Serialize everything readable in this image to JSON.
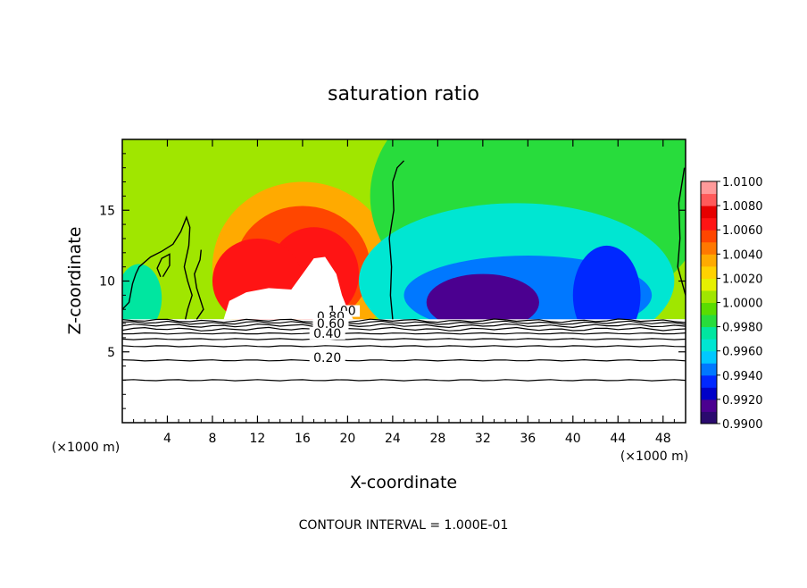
{
  "chart_data": {
    "type": "heatmap",
    "title": "saturation ratio",
    "xlabel": "X-coordinate",
    "ylabel": "Z-coordinate",
    "x_unit_left": "(×1000 m)",
    "x_unit_right": "(×1000 m)",
    "footer": "CONTOUR INTERVAL = 1.000E-01",
    "xlim": [
      0,
      50
    ],
    "ylim": [
      0,
      20
    ],
    "x_ticks": [
      4,
      8,
      12,
      16,
      20,
      24,
      28,
      32,
      36,
      40,
      44,
      48
    ],
    "y_ticks": [
      5,
      10,
      15
    ],
    "colorbar": {
      "range": [
        0.99,
        1.01
      ],
      "labels": [
        "1.0100",
        "1.0080",
        "1.0060",
        "1.0040",
        "1.0020",
        "1.0000",
        "0.9980",
        "0.9960",
        "0.9940",
        "0.9920",
        "0.9900"
      ],
      "colors": [
        "#2a0a6e",
        "#4b0090",
        "#0000c8",
        "#0028ff",
        "#0078ff",
        "#00c8ff",
        "#00e6d2",
        "#00e6a0",
        "#28dc3c",
        "#5adc00",
        "#a0e600",
        "#e6f000",
        "#ffd200",
        "#ffaa00",
        "#ff7800",
        "#ff4600",
        "#ff1414",
        "#e60000",
        "#ff5a5a",
        "#ff9a9a"
      ]
    },
    "contour_labels": [
      "1.00",
      "0.80",
      "0.60",
      "0.40",
      "0.20"
    ],
    "surface_z": 7.3,
    "contour_levels_z": [
      3.0,
      4.4,
      5.4,
      5.9,
      6.3,
      6.6,
      6.85,
      7.05,
      7.2
    ],
    "blobs": [
      {
        "x": 4,
        "z": 17.5,
        "rx": 12,
        "rz": 6,
        "value": 1.0002
      },
      {
        "x": 13,
        "z": 16,
        "rx": 9,
        "rz": 7,
        "value": 1.0008
      },
      {
        "x": 16,
        "z": 11,
        "rx": 8,
        "rz": 6,
        "value": 1.0034
      },
      {
        "x": 16,
        "z": 11,
        "rx": 6,
        "rz": 4.3,
        "value": 1.0054
      },
      {
        "x": 17,
        "z": 10.5,
        "rx": 4,
        "rz": 3.3,
        "value": 1.0066
      },
      {
        "x": 12,
        "z": 10,
        "rx": 4,
        "rz": 3,
        "value": 1.006
      },
      {
        "x": 37,
        "z": 16,
        "rx": 15,
        "rz": 9,
        "value": 0.9986
      },
      {
        "x": 35,
        "z": 10,
        "rx": 14,
        "rz": 5.5,
        "value": 0.9968
      },
      {
        "x": 36,
        "z": 9,
        "rx": 11,
        "rz": 2.8,
        "value": 0.9946
      },
      {
        "x": 32,
        "z": 8.5,
        "rx": 5,
        "rz": 2,
        "value": 0.9918
      },
      {
        "x": 43,
        "z": 9,
        "rx": 3,
        "rz": 3.5,
        "value": 0.9935
      },
      {
        "x": 1.5,
        "z": 8.8,
        "rx": 2,
        "rz": 2.4,
        "value": 0.9972
      }
    ],
    "white_region": [
      [
        9,
        7.3
      ],
      [
        9.5,
        8.6
      ],
      [
        11,
        9.2
      ],
      [
        13,
        9.5
      ],
      [
        15,
        9.4
      ],
      [
        16,
        10.5
      ],
      [
        17,
        11.6
      ],
      [
        18,
        11.7
      ],
      [
        19,
        10.5
      ],
      [
        19.5,
        9
      ],
      [
        20,
        8
      ],
      [
        20.5,
        7.3
      ]
    ],
    "black_contours": [
      [
        [
          24,
          7.3
        ],
        [
          23.8,
          9
        ],
        [
          23.9,
          11
        ],
        [
          23.7,
          13
        ],
        [
          24.1,
          15
        ],
        [
          24,
          17
        ],
        [
          24.4,
          18
        ],
        [
          25,
          18.5
        ]
      ],
      [
        [
          0,
          8
        ],
        [
          0.6,
          8.5
        ],
        [
          0.9,
          9.8
        ],
        [
          1.2,
          10.5
        ],
        [
          1.5,
          11
        ],
        [
          2.5,
          11.7
        ],
        [
          3.5,
          12.1
        ],
        [
          4.5,
          12.6
        ],
        [
          5.2,
          13.5
        ],
        [
          5.7,
          14.5
        ],
        [
          6,
          13.8
        ],
        [
          5.9,
          12.5
        ],
        [
          5.5,
          11
        ],
        [
          5.8,
          10
        ],
        [
          6.2,
          9
        ],
        [
          5.8,
          8
        ],
        [
          5.6,
          7.3
        ]
      ],
      [
        [
          3.4,
          10.3
        ],
        [
          3.1,
          10.9
        ],
        [
          3.5,
          11.6
        ],
        [
          4.2,
          11.9
        ],
        [
          4.2,
          11.1
        ],
        [
          3.6,
          10.3
        ]
      ],
      [
        [
          6.6,
          7.3
        ],
        [
          7.2,
          8
        ],
        [
          6.6,
          9.5
        ],
        [
          6.4,
          10.5
        ],
        [
          6.9,
          11.5
        ],
        [
          7,
          12.2
        ]
      ],
      [
        [
          50,
          9
        ],
        [
          49.3,
          11
        ],
        [
          49.5,
          13
        ],
        [
          49.4,
          15.5
        ],
        [
          49.9,
          18
        ]
      ]
    ]
  }
}
